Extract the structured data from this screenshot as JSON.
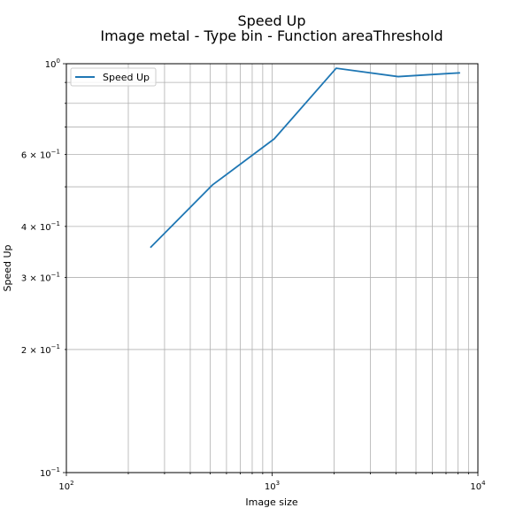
{
  "chart_data": {
    "type": "line",
    "title": "Speed Up",
    "subtitle": "Image metal - Type bin - Function areaThreshold",
    "xlabel": "Image size",
    "ylabel": "Speed Up",
    "xscale": "log",
    "yscale": "log",
    "xlim": [
      100,
      10000
    ],
    "ylim": [
      0.1,
      1.0
    ],
    "grid": "on (major and minor)",
    "legend_placement": "top-left",
    "x_ticks": [
      {
        "base": "10",
        "exp": "2"
      },
      {
        "base": "10",
        "exp": "3"
      },
      {
        "base": "10",
        "exp": "4"
      }
    ],
    "y_ticks": [
      {
        "value": 0.1,
        "base": "10",
        "exp": "−1"
      },
      {
        "value": 0.2,
        "base": "2 × 10",
        "exp": "−1"
      },
      {
        "value": 0.3,
        "base": "3 × 10",
        "exp": "−1"
      },
      {
        "value": 0.4,
        "base": "4 × 10",
        "exp": "−1"
      },
      {
        "value": 0.6,
        "base": "6 × 10",
        "exp": "−1"
      },
      {
        "value": 1.0,
        "base": "10",
        "exp": "0"
      }
    ],
    "series": [
      {
        "name": "Speed Up",
        "color": "#1f77b4",
        "x": [
          256,
          512,
          1024,
          2048,
          4096,
          8192
        ],
        "y": [
          0.355,
          0.505,
          0.655,
          0.975,
          0.93,
          0.95
        ]
      }
    ]
  }
}
